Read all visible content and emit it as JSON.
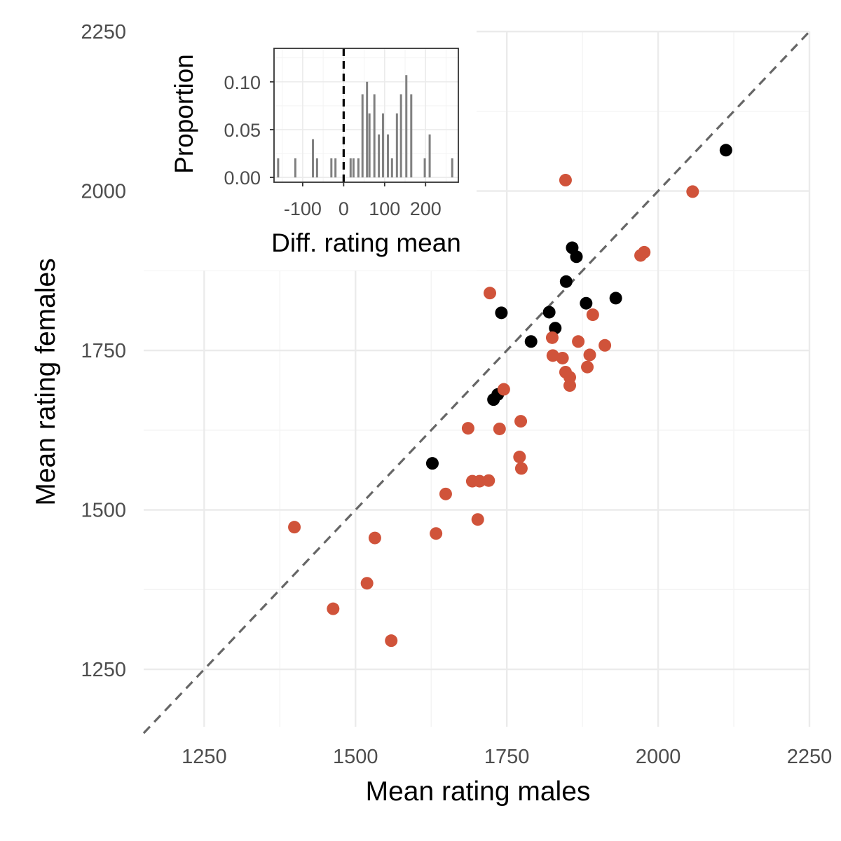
{
  "chart_data": [
    {
      "type": "scatter",
      "title": "",
      "xlabel": "Mean rating males",
      "ylabel": "Mean rating females",
      "xlim": [
        1150,
        2250
      ],
      "ylim": [
        1160,
        2250
      ],
      "xticks": [
        1250,
        1500,
        1750,
        2000,
        2250
      ],
      "yticks": [
        1250,
        1500,
        1750,
        2000,
        2250
      ],
      "grid": true,
      "legend": "none",
      "reference_line": {
        "type": "identity",
        "style": "dashed",
        "color": "#666666"
      },
      "series": [
        {
          "color": "#000000",
          "points": [
            [
              2112,
              2064
            ],
            [
              1858,
              1911
            ],
            [
              1865,
              1897
            ],
            [
              1848,
              1858
            ],
            [
              1930,
              1832
            ],
            [
              1881,
              1824
            ],
            [
              1741,
              1809
            ],
            [
              1820,
              1810
            ],
            [
              1830,
              1785
            ],
            [
              1790,
              1764
            ],
            [
              1735,
              1681
            ],
            [
              1728,
              1673
            ],
            [
              1627,
              1573
            ]
          ]
        },
        {
          "color": "#d0533a",
          "points": [
            [
              1847,
              2017
            ],
            [
              2057,
              1999
            ],
            [
              1977,
              1904
            ],
            [
              1971,
              1899
            ],
            [
              1722,
              1840
            ],
            [
              1892,
              1806
            ],
            [
              1825,
              1770
            ],
            [
              1868,
              1764
            ],
            [
              1912,
              1758
            ],
            [
              1887,
              1743
            ],
            [
              1826,
              1742
            ],
            [
              1842,
              1738
            ],
            [
              1883,
              1724
            ],
            [
              1847,
              1716
            ],
            [
              1854,
              1708
            ],
            [
              1854,
              1695
            ],
            [
              1745,
              1689
            ],
            [
              1773,
              1639
            ],
            [
              1738,
              1627
            ],
            [
              1686,
              1628
            ],
            [
              1771,
              1583
            ],
            [
              1774,
              1565
            ],
            [
              1693,
              1545
            ],
            [
              1705,
              1545
            ],
            [
              1720,
              1546
            ],
            [
              1649,
              1525
            ],
            [
              1702,
              1485
            ],
            [
              1399,
              1473
            ],
            [
              1633,
              1463
            ],
            [
              1532,
              1456
            ],
            [
              1519,
              1385
            ],
            [
              1463,
              1345
            ],
            [
              1559,
              1295
            ]
          ]
        }
      ]
    },
    {
      "type": "bar",
      "title": "",
      "xlabel": "Diff. rating mean",
      "ylabel": "Proportion",
      "xlim": [
        -170,
        280
      ],
      "ylim": [
        -0.005,
        0.135
      ],
      "xticks": [
        -100,
        0,
        100,
        200
      ],
      "xtick_labels": [
        "-100",
        "0",
        "100",
        "200"
      ],
      "yticks": [
        0.0,
        0.05,
        0.1
      ],
      "ytick_labels": [
        "0.00",
        "0.05",
        "0.10"
      ],
      "grid": true,
      "reference_line": {
        "type": "vertical",
        "x": 0,
        "style": "dashed",
        "color": "#000000"
      },
      "bar_color": "#808080",
      "x": [
        -160,
        -118,
        -75,
        -65,
        -30,
        -20,
        17,
        24,
        36,
        46,
        57,
        63,
        75,
        86,
        96,
        108,
        118,
        130,
        140,
        153,
        165,
        198,
        210,
        265
      ],
      "values": [
        0.02,
        0.02,
        0.04,
        0.02,
        0.02,
        0.02,
        0.02,
        0.02,
        0.02,
        0.087,
        0.1,
        0.067,
        0.087,
        0.045,
        0.067,
        0.045,
        0.02,
        0.067,
        0.087,
        0.107,
        0.087,
        0.02,
        0.045,
        0.02
      ]
    }
  ]
}
